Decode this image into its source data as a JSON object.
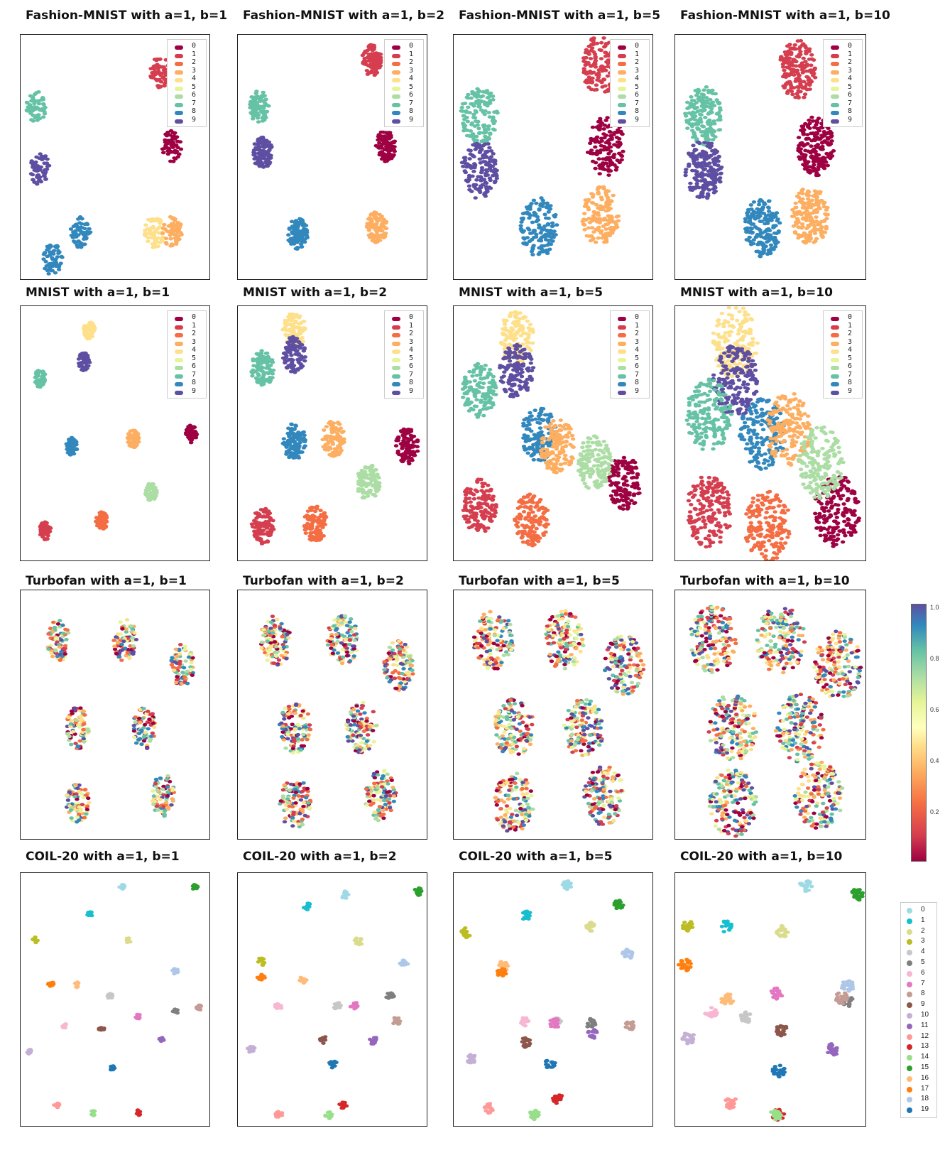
{
  "titles": [
    "Fashion-MNIST with a=1, b=1",
    "Fashion-MNIST with a=1, b=2",
    "Fashion-MNIST with a=1, b=5",
    "Fashion-MNIST with a=1, b=10",
    "MNIST with a=1, b=1",
    "MNIST with a=1, b=2",
    "MNIST with a=1, b=5",
    "MNIST with a=1, b=10",
    "Turbofan with a=1, b=1",
    "Turbofan with a=1, b=2",
    "Turbofan with a=1, b=5",
    "Turbofan with a=1, b=10",
    "COIL-20 with a=1, b=1",
    "COIL-20 with a=1, b=2",
    "COIL-20 with a=1, b=5",
    "COIL-20 with a=1, b=10"
  ],
  "digit_legend": {
    "labels": [
      "0",
      "1",
      "2",
      "3",
      "4",
      "5",
      "6",
      "7",
      "8",
      "9"
    ],
    "colors": [
      "#9e0142",
      "#d53e4f",
      "#f46d43",
      "#fdae61",
      "#fee08b",
      "#e6f598",
      "#abdda4",
      "#66c2a5",
      "#3288bd",
      "#5e4fa2"
    ]
  },
  "colorbar": {
    "ticks": [
      "1.0",
      "0.8",
      "0.6",
      "0.4",
      "0.2"
    ],
    "colormap": "Spectral"
  },
  "coil_legend": {
    "labels": [
      "0",
      "1",
      "2",
      "3",
      "4",
      "5",
      "6",
      "7",
      "8",
      "9",
      "10",
      "11",
      "12",
      "13",
      "14",
      "15",
      "16",
      "17",
      "18",
      "19"
    ],
    "colors": [
      "#9edae5",
      "#17becf",
      "#dbdb8d",
      "#bcbd22",
      "#c7c7c7",
      "#7f7f7f",
      "#f7b6d2",
      "#e377c2",
      "#c49c94",
      "#8c564b",
      "#c5b0d5",
      "#9467bd",
      "#ff9896",
      "#d62728",
      "#98df8a",
      "#2ca02c",
      "#ffbb78",
      "#ff7f0e",
      "#aec7e8",
      "#1f77b4"
    ]
  },
  "chart_data": [
    {
      "type": "scatter",
      "title": "Fashion-MNIST with a=1, b=1",
      "legend": "top-right",
      "legend_entries": [
        "0",
        "1",
        "2",
        "3",
        "4",
        "5",
        "6",
        "7",
        "8",
        "9"
      ],
      "clusters": [
        {
          "label": "1",
          "x": 0.75,
          "y": 0.87
        },
        {
          "label": "7",
          "x": 0.05,
          "y": 0.72
        },
        {
          "label": "9",
          "x": 0.07,
          "y": 0.45
        },
        {
          "label": "8",
          "x": 0.3,
          "y": 0.18
        },
        {
          "label": "8",
          "x": 0.14,
          "y": 0.06
        },
        {
          "label": "0",
          "x": 0.82,
          "y": 0.55
        },
        {
          "label": "4",
          "x": 0.72,
          "y": 0.18
        },
        {
          "label": "3",
          "x": 0.82,
          "y": 0.18
        }
      ]
    },
    {
      "type": "scatter",
      "title": "Fashion-MNIST with a=1, b=2",
      "legend": "top-right",
      "legend_entries": [
        "0",
        "1",
        "2",
        "3",
        "4",
        "5",
        "6",
        "7",
        "8",
        "9"
      ],
      "clusters": [
        {
          "label": "1",
          "x": 0.72,
          "y": 0.92
        },
        {
          "label": "7",
          "x": 0.08,
          "y": 0.72
        },
        {
          "label": "9",
          "x": 0.1,
          "y": 0.52
        },
        {
          "label": "0",
          "x": 0.8,
          "y": 0.55
        },
        {
          "label": "8",
          "x": 0.3,
          "y": 0.17
        },
        {
          "label": "3",
          "x": 0.75,
          "y": 0.2
        }
      ]
    },
    {
      "type": "scatter",
      "title": "Fashion-MNIST with a=1, b=5",
      "legend": "top-right",
      "legend_entries": [
        "0",
        "1",
        "2",
        "3",
        "4",
        "5",
        "6",
        "7",
        "8",
        "9"
      ],
      "clusters": [
        {
          "label": "1",
          "x": 0.75,
          "y": 0.9
        },
        {
          "label": "7",
          "x": 0.1,
          "y": 0.68
        },
        {
          "label": "9",
          "x": 0.1,
          "y": 0.45
        },
        {
          "label": "8",
          "x": 0.42,
          "y": 0.2
        },
        {
          "label": "0",
          "x": 0.78,
          "y": 0.55
        },
        {
          "label": "3",
          "x": 0.75,
          "y": 0.25
        }
      ]
    },
    {
      "type": "scatter",
      "title": "Fashion-MNIST with a=1, b=10",
      "legend": "top-right",
      "legend_entries": [
        "0",
        "1",
        "2",
        "3",
        "4",
        "5",
        "6",
        "7",
        "8",
        "9"
      ],
      "clusters": [
        {
          "label": "1",
          "x": 0.65,
          "y": 0.88
        },
        {
          "label": "7",
          "x": 0.12,
          "y": 0.68
        },
        {
          "label": "9",
          "x": 0.12,
          "y": 0.45
        },
        {
          "label": "8",
          "x": 0.45,
          "y": 0.2
        },
        {
          "label": "0",
          "x": 0.75,
          "y": 0.55
        },
        {
          "label": "3",
          "x": 0.72,
          "y": 0.25
        }
      ]
    },
    {
      "type": "scatter",
      "title": "MNIST with a=1, b=1",
      "legend": "top-right",
      "legend_entries": [
        "0",
        "1",
        "2",
        "3",
        "4",
        "5",
        "6",
        "7",
        "8",
        "9"
      ],
      "clusters": [
        {
          "label": "0",
          "x": 0.93,
          "y": 0.5
        },
        {
          "label": "1",
          "x": 0.1,
          "y": 0.1
        },
        {
          "label": "2",
          "x": 0.42,
          "y": 0.14
        },
        {
          "label": "4",
          "x": 0.35,
          "y": 0.93
        },
        {
          "label": "9",
          "x": 0.32,
          "y": 0.8
        },
        {
          "label": "7",
          "x": 0.07,
          "y": 0.73
        },
        {
          "label": "6",
          "x": 0.7,
          "y": 0.26
        },
        {
          "label": "8",
          "x": 0.25,
          "y": 0.45
        },
        {
          "label": "3",
          "x": 0.6,
          "y": 0.48
        }
      ]
    },
    {
      "type": "scatter",
      "title": "MNIST with a=1, b=2",
      "legend": "top-right",
      "legend_entries": [
        "0",
        "1",
        "2",
        "3",
        "4",
        "5",
        "6",
        "7",
        "8",
        "9"
      ],
      "clusters": [
        {
          "label": "0",
          "x": 0.92,
          "y": 0.45
        },
        {
          "label": "1",
          "x": 0.1,
          "y": 0.12
        },
        {
          "label": "2",
          "x": 0.4,
          "y": 0.13
        },
        {
          "label": "4",
          "x": 0.28,
          "y": 0.93
        },
        {
          "label": "9",
          "x": 0.28,
          "y": 0.83
        },
        {
          "label": "7",
          "x": 0.1,
          "y": 0.77
        },
        {
          "label": "6",
          "x": 0.7,
          "y": 0.3
        },
        {
          "label": "8",
          "x": 0.28,
          "y": 0.47
        },
        {
          "label": "3",
          "x": 0.5,
          "y": 0.48
        }
      ]
    },
    {
      "type": "scatter",
      "title": "MNIST with a=1, b=5",
      "legend": "top-right",
      "legend_entries": [
        "0",
        "1",
        "2",
        "3",
        "4",
        "5",
        "6",
        "7",
        "8",
        "9"
      ],
      "clusters": [
        {
          "label": "0",
          "x": 0.88,
          "y": 0.3
        },
        {
          "label": "1",
          "x": 0.1,
          "y": 0.2
        },
        {
          "label": "2",
          "x": 0.38,
          "y": 0.15
        },
        {
          "label": "4",
          "x": 0.3,
          "y": 0.9
        },
        {
          "label": "9",
          "x": 0.3,
          "y": 0.76
        },
        {
          "label": "7",
          "x": 0.1,
          "y": 0.68
        },
        {
          "label": "8",
          "x": 0.42,
          "y": 0.5
        },
        {
          "label": "3",
          "x": 0.52,
          "y": 0.45
        },
        {
          "label": "6",
          "x": 0.72,
          "y": 0.38
        }
      ]
    },
    {
      "type": "scatter",
      "title": "MNIST with a=1, b=10",
      "legend": "top-right",
      "legend_entries": [
        "0",
        "1",
        "2",
        "3",
        "4",
        "5",
        "6",
        "7",
        "8",
        "9"
      ],
      "clusters": [
        {
          "label": "0",
          "x": 0.87,
          "y": 0.18
        },
        {
          "label": "1",
          "x": 0.15,
          "y": 0.18
        },
        {
          "label": "2",
          "x": 0.48,
          "y": 0.12
        },
        {
          "label": "4",
          "x": 0.3,
          "y": 0.88
        },
        {
          "label": "9",
          "x": 0.3,
          "y": 0.72
        },
        {
          "label": "7",
          "x": 0.15,
          "y": 0.58
        },
        {
          "label": "8",
          "x": 0.45,
          "y": 0.5
        },
        {
          "label": "3",
          "x": 0.6,
          "y": 0.52
        },
        {
          "label": "6",
          "x": 0.78,
          "y": 0.38
        }
      ]
    },
    {
      "type": "scatter",
      "title": "Turbofan with a=1, b=1",
      "colorbar": {
        "min": 0,
        "max": 1,
        "ticks": [
          0.2,
          0.4,
          0.6,
          0.8,
          1.0
        ]
      }
    },
    {
      "type": "scatter",
      "title": "Turbofan with a=1, b=2",
      "colorbar": {
        "min": 0,
        "max": 1,
        "ticks": [
          0.2,
          0.4,
          0.6,
          0.8,
          1.0
        ]
      }
    },
    {
      "type": "scatter",
      "title": "Turbofan with a=1, b=5",
      "colorbar": {
        "min": 0,
        "max": 1,
        "ticks": [
          0.2,
          0.4,
          0.6,
          0.8,
          1.0
        ]
      }
    },
    {
      "type": "scatter",
      "title": "Turbofan with a=1, b=10",
      "colorbar": {
        "min": 0,
        "max": 1,
        "ticks": [
          0.2,
          0.4,
          0.6,
          0.8,
          1.0
        ]
      }
    },
    {
      "type": "scatter",
      "title": "COIL-20 with a=1, b=1",
      "legend": "right",
      "legend_entries": [
        "0",
        "1",
        "2",
        "3",
        "4",
        "5",
        "6",
        "7",
        "8",
        "9",
        "10",
        "11",
        "12",
        "13",
        "14",
        "15",
        "16",
        "17",
        "18",
        "19"
      ]
    },
    {
      "type": "scatter",
      "title": "COIL-20 with a=1, b=2",
      "legend": "right",
      "legend_entries": [
        "0",
        "1",
        "2",
        "3",
        "4",
        "5",
        "6",
        "7",
        "8",
        "9",
        "10",
        "11",
        "12",
        "13",
        "14",
        "15",
        "16",
        "17",
        "18",
        "19"
      ]
    },
    {
      "type": "scatter",
      "title": "COIL-20 with a=1, b=5",
      "legend": "right",
      "legend_entries": [
        "0",
        "1",
        "2",
        "3",
        "4",
        "5",
        "6",
        "7",
        "8",
        "9",
        "10",
        "11",
        "12",
        "13",
        "14",
        "15",
        "16",
        "17",
        "18",
        "19"
      ]
    },
    {
      "type": "scatter",
      "title": "COIL-20 with a=1, b=10",
      "legend": "right",
      "legend_entries": [
        "0",
        "1",
        "2",
        "3",
        "4",
        "5",
        "6",
        "7",
        "8",
        "9",
        "10",
        "11",
        "12",
        "13",
        "14",
        "15",
        "16",
        "17",
        "18",
        "19"
      ]
    }
  ]
}
